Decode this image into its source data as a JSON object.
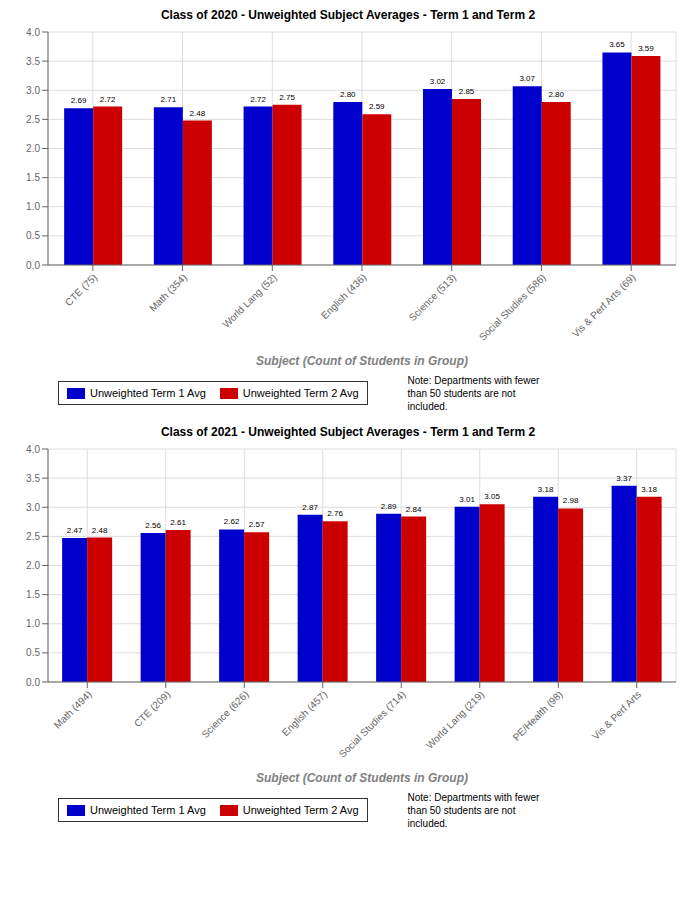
{
  "chart_data": [
    {
      "type": "bar",
      "title": "Class of 2020 - Unweighted Subject Averages - Term 1 and Term 2",
      "x_label": "Subject (Count of Students in Group)",
      "categories": [
        "CTE (75)",
        "Math (354)",
        "World Lang (52)",
        "English (436)",
        "Science (513)",
        "Social Studies (586)",
        "Vis & Perf Arts (69)"
      ],
      "series": [
        {
          "name": "Unweighted Term 1 Avg",
          "color": "#0000CC",
          "values": [
            2.69,
            2.71,
            2.72,
            2.8,
            3.02,
            3.07,
            3.65
          ],
          "value_labels": [
            "2.69",
            "2.71",
            "2.72",
            "2.80",
            "3.02",
            "3.07",
            "3.65"
          ]
        },
        {
          "name": "Unweighted Term 2 Avg",
          "color": "#CC0000",
          "values": [
            2.72,
            2.48,
            2.75,
            2.59,
            2.85,
            2.8,
            3.59
          ],
          "value_labels": [
            "2.72",
            "2.48",
            "2.75",
            "2.59",
            "2.85",
            "2.80",
            "3.59"
          ]
        }
      ],
      "ylim": [
        0.0,
        4.0
      ],
      "yticks": [
        {
          "value": 0,
          "label": "0.0"
        },
        0.5,
        {
          "value": 1,
          "label": "1.0"
        },
        1.5,
        {
          "value": 2,
          "label": "2.0"
        },
        2.5,
        {
          "value": 3,
          "label": "3.0"
        },
        3.5,
        {
          "value": 4,
          "label": "4.0"
        }
      ],
      "grid": true,
      "data_labels": true,
      "legend": "bottom",
      "annotation": "Note: Departments with fewer\nthan 50 students are not\nincluded."
    },
    {
      "type": "bar",
      "title": "Class of 2021 - Unweighted Subject Averages - Term 1 and Term 2",
      "x_label": "Subject (Count of Students in Group)",
      "categories": [
        "Math (494)",
        "CTE (209)",
        "Science (626)",
        "English (457)",
        "Social Studies (714)",
        "World Lang (219)",
        "PE/Health (98)",
        "Vis & Perf Arts"
      ],
      "series": [
        {
          "name": "Unweighted Term 1 Avg",
          "color": "#0000CC",
          "values": [
            2.47,
            2.56,
            2.62,
            2.87,
            2.89,
            3.01,
            3.18,
            3.37
          ],
          "value_labels": [
            "2.47",
            "2.56",
            "2.62",
            "2.87",
            "2.89",
            "3.01",
            "3.18",
            "3.37"
          ]
        },
        {
          "name": "Unweighted Term 2 Avg",
          "color": "#CC0000",
          "values": [
            2.48,
            2.61,
            2.57,
            2.76,
            2.84,
            3.05,
            2.98,
            3.18
          ],
          "value_labels": [
            "2.48",
            "2.61",
            "2.57",
            "2.76",
            "2.84",
            "3.05",
            "2.98",
            "3.18"
          ]
        }
      ],
      "ylim": [
        0.0,
        4.0
      ],
      "yticks": [
        {
          "value": 0,
          "label": "0.0"
        },
        0.5,
        {
          "value": 1,
          "label": "1.0"
        },
        1.5,
        {
          "value": 2,
          "label": "2.0"
        },
        2.5,
        {
          "value": 3,
          "label": "3.0"
        },
        3.5,
        {
          "value": 4,
          "label": "4.0"
        }
      ],
      "grid": true,
      "data_labels": true,
      "legend": "bottom",
      "annotation": "Note: Departments with fewer\nthan 50 students are not\nincluded."
    }
  ]
}
